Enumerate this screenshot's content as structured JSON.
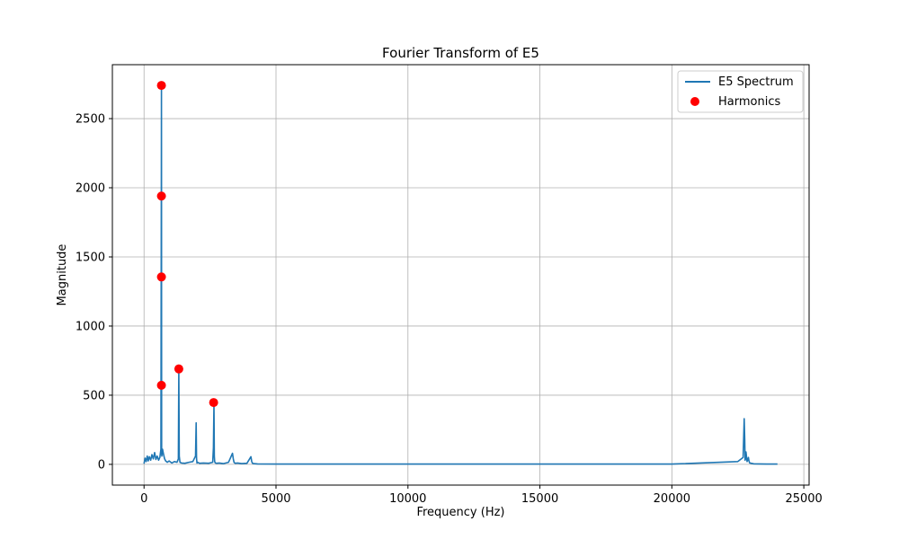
{
  "chart_data": {
    "type": "line",
    "title": "Fourier Transform of E5",
    "xlabel": "Frequency (Hz)",
    "ylabel": "Magnitude",
    "xlim": [
      -1200,
      25200
    ],
    "ylim": [
      -150,
      2890
    ],
    "xticks": [
      0,
      5000,
      10000,
      15000,
      20000,
      25000
    ],
    "yticks": [
      0,
      500,
      1000,
      1500,
      2000,
      2500
    ],
    "grid": true,
    "legend_position": "top-right",
    "series": [
      {
        "name": "E5 Spectrum",
        "kind": "line",
        "color": "#1f77b4",
        "x": [
          0,
          40,
          80,
          120,
          160,
          200,
          250,
          300,
          350,
          400,
          450,
          500,
          550,
          600,
          640,
          655,
          659,
          663,
          667,
          675,
          700,
          740,
          780,
          820,
          880,
          950,
          1050,
          1150,
          1250,
          1300,
          1318,
          1335,
          1360,
          1420,
          1550,
          1700,
          1850,
          1950,
          1975,
          1990,
          2005,
          2030,
          2100,
          2250,
          2450,
          2600,
          2630,
          2650,
          2662,
          2675,
          2700,
          2750,
          2850,
          3000,
          3200,
          3350,
          3380,
          3410,
          3450,
          3550,
          3700,
          3900,
          4050,
          4080,
          4110,
          4150,
          4300,
          5000,
          8000,
          11000,
          14000,
          17000,
          20000,
          22500,
          22700,
          22740,
          22760,
          22775,
          22790,
          22810,
          22850,
          22900,
          22920,
          22950,
          23000,
          23100,
          23300,
          23600,
          24000
        ],
        "y": [
          5,
          45,
          20,
          60,
          25,
          55,
          30,
          70,
          40,
          85,
          35,
          60,
          30,
          50,
          110,
          2200,
          2740,
          1200,
          80,
          60,
          110,
          70,
          40,
          25,
          15,
          25,
          10,
          20,
          15,
          40,
          690,
          60,
          15,
          10,
          8,
          15,
          20,
          60,
          300,
          45,
          10,
          15,
          8,
          10,
          8,
          15,
          120,
          445,
          60,
          20,
          10,
          8,
          10,
          5,
          15,
          80,
          40,
          15,
          8,
          10,
          5,
          8,
          55,
          20,
          8,
          5,
          3,
          2,
          2,
          2,
          2,
          2,
          2,
          20,
          50,
          330,
          180,
          30,
          40,
          90,
          20,
          50,
          25,
          10,
          8,
          4,
          3,
          2,
          2
        ]
      },
      {
        "name": "Harmonics",
        "kind": "scatter",
        "color": "#ff0000",
        "x": [
          659,
          659,
          659,
          659,
          1318,
          2637
        ],
        "y": [
          2740,
          1940,
          1355,
          572,
          690,
          447
        ]
      }
    ]
  }
}
